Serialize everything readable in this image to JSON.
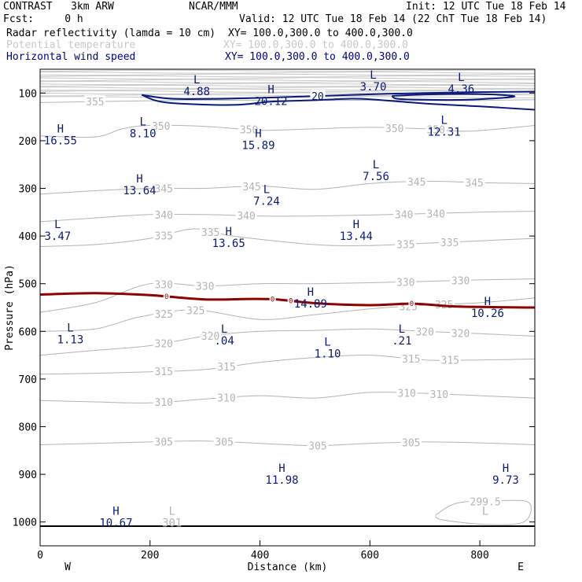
{
  "header": {
    "model": "CONTRAST   3km ARW",
    "center": "NCAR/MMM",
    "init": "Init: 12 UTC Tue 18 Feb 14",
    "fcst": "Fcst:     0 h",
    "valid": "Valid: 12 UTC Tue 18 Feb 14 (22 ChT Tue 18 Feb 14)",
    "fields": [
      {
        "label": "Radar reflectivity (lamda = 10 cm)",
        "xy": "XY= 100.0,300.0 to 400.0,300.0",
        "color": "#000000"
      },
      {
        "label": "Potential temperature",
        "xy": "XY= 100.0,300.0 to 400.0,300.0",
        "color": "#c8c8c8"
      },
      {
        "label": "Horizontal wind speed",
        "xy": "XY= 100.0,300.0 to 400.0,300.0",
        "color": "#000080"
      }
    ]
  },
  "colors": {
    "theta": "#b4b4b4",
    "wind": "#0a1a78",
    "freezing": "#8b0000",
    "frame": "#000000"
  },
  "chart_data": {
    "type": "contour-cross-section",
    "xlabel": "Distance (km)",
    "ylabel": "Pressure (hPa)",
    "xlim": [
      0,
      900
    ],
    "ylim": [
      1050,
      50
    ],
    "x_ticks": [
      0,
      200,
      400,
      600,
      800
    ],
    "y_ticks": [
      100,
      200,
      300,
      400,
      500,
      600,
      700,
      800,
      900,
      1000
    ],
    "endpoints": {
      "left": "W",
      "right": "E"
    },
    "theta_contours": [
      {
        "level": "355",
        "x": [
          0,
          150,
          300,
          450,
          600,
          750,
          900
        ],
        "p": [
          120,
          117,
          115,
          116,
          115,
          116,
          114
        ],
        "labels": [
          {
            "x": 100,
            "text": "355"
          }
        ]
      },
      {
        "level": "350",
        "x": [
          0,
          100,
          150,
          200,
          300,
          400,
          500,
          600,
          700,
          780,
          900
        ],
        "p": [
          190,
          192,
          175,
          168,
          170,
          178,
          175,
          172,
          175,
          180,
          168
        ],
        "labels": [
          {
            "x": 220,
            "text": "350"
          },
          {
            "x": 380,
            "text": "350"
          },
          {
            "x": 645,
            "text": "350"
          },
          {
            "x": 720,
            "text": "350"
          }
        ]
      },
      {
        "level": "345",
        "x": [
          0,
          100,
          200,
          300,
          400,
          500,
          600,
          700,
          800,
          900
        ],
        "p": [
          312,
          305,
          300,
          300,
          295,
          302,
          290,
          285,
          288,
          290
        ],
        "labels": [
          {
            "x": 225,
            "text": "345"
          },
          {
            "x": 385,
            "text": "345"
          },
          {
            "x": 685,
            "text": "345"
          },
          {
            "x": 790,
            "text": "345"
          }
        ]
      },
      {
        "level": "340",
        "x": [
          0,
          100,
          200,
          300,
          400,
          500,
          600,
          700,
          800,
          900
        ],
        "p": [
          370,
          362,
          355,
          355,
          358,
          358,
          356,
          353,
          350,
          348
        ],
        "labels": [
          {
            "x": 225,
            "text": "340"
          },
          {
            "x": 375,
            "text": "340"
          },
          {
            "x": 662,
            "text": "340"
          },
          {
            "x": 720,
            "text": "340"
          }
        ]
      },
      {
        "level": "335",
        "x": [
          0,
          100,
          200,
          280,
          350,
          500,
          600,
          700,
          800,
          900
        ],
        "p": [
          422,
          418,
          405,
          385,
          400,
          418,
          420,
          415,
          410,
          405
        ],
        "labels": [
          {
            "x": 225,
            "text": "335"
          },
          {
            "x": 310,
            "text": "335"
          },
          {
            "x": 665,
            "text": "335"
          },
          {
            "x": 745,
            "text": "335"
          }
        ]
      },
      {
        "level": "330",
        "x": [
          0,
          100,
          200,
          300,
          400,
          500,
          600,
          700,
          800,
          900
        ],
        "p": [
          560,
          540,
          500,
          505,
          500,
          500,
          498,
          495,
          492,
          490
        ],
        "labels": [
          {
            "x": 225,
            "text": "330"
          },
          {
            "x": 300,
            "text": "330"
          },
          {
            "x": 665,
            "text": "330"
          },
          {
            "x": 765,
            "text": "330"
          }
        ]
      },
      {
        "level": "325",
        "x": [
          0,
          100,
          180,
          280,
          400,
          500,
          600,
          700,
          800,
          900
        ],
        "p": [
          600,
          595,
          570,
          555,
          575,
          565,
          553,
          545,
          540,
          530
        ],
        "labels": [
          {
            "x": 225,
            "text": "325"
          },
          {
            "x": 283,
            "text": "325"
          },
          {
            "x": 670,
            "text": "325"
          },
          {
            "x": 735,
            "text": "325"
          }
        ]
      },
      {
        "level": "320",
        "x": [
          0,
          100,
          200,
          300,
          400,
          500,
          600,
          700,
          800,
          900
        ],
        "p": [
          650,
          640,
          630,
          610,
          600,
          598,
          595,
          600,
          605,
          610
        ],
        "labels": [
          {
            "x": 225,
            "text": "320"
          },
          {
            "x": 310,
            "text": "320"
          },
          {
            "x": 700,
            "text": "320"
          },
          {
            "x": 765,
            "text": "320"
          }
        ]
      },
      {
        "level": "315",
        "x": [
          0,
          100,
          200,
          300,
          400,
          500,
          600,
          700,
          800,
          900
        ],
        "p": [
          690,
          688,
          685,
          680,
          665,
          655,
          650,
          660,
          660,
          658
        ],
        "labels": [
          {
            "x": 225,
            "text": "315"
          },
          {
            "x": 339,
            "text": "315"
          },
          {
            "x": 675,
            "text": "315"
          },
          {
            "x": 746,
            "text": "315"
          }
        ]
      },
      {
        "level": "310",
        "x": [
          0,
          100,
          200,
          300,
          400,
          500,
          600,
          700,
          800,
          900
        ],
        "p": [
          745,
          748,
          750,
          742,
          735,
          740,
          728,
          730,
          735,
          740
        ],
        "labels": [
          {
            "x": 225,
            "text": "310"
          },
          {
            "x": 339,
            "text": "310"
          },
          {
            "x": 667,
            "text": "310"
          },
          {
            "x": 726,
            "text": "310"
          }
        ]
      },
      {
        "level": "305",
        "x": [
          0,
          100,
          200,
          300,
          400,
          500,
          600,
          700,
          800,
          900
        ],
        "p": [
          838,
          835,
          832,
          830,
          835,
          840,
          835,
          832,
          834,
          838
        ],
        "labels": [
          {
            "x": 225,
            "text": "305"
          },
          {
            "x": 335,
            "text": "305"
          },
          {
            "x": 505,
            "text": "305"
          },
          {
            "x": 675,
            "text": "305"
          }
        ]
      },
      {
        "level": "299.5",
        "x": [
          720,
          760,
          840,
          890,
          880,
          810,
          730,
          720
        ],
        "p": [
          985,
          960,
          955,
          960,
          1000,
          1005,
          995,
          985
        ],
        "labels": [
          {
            "x": 810,
            "text": "299.5"
          }
        ]
      }
    ],
    "wind_contours": [
      {
        "level": "20",
        "points": [
          [
            185,
            104
          ],
          [
            240,
            112
          ],
          [
            330,
            112
          ],
          [
            400,
            110
          ],
          [
            460,
            108
          ],
          [
            540,
            105
          ],
          [
            620,
            102
          ],
          [
            700,
            100
          ],
          [
            800,
            98
          ],
          [
            900,
            97
          ]
        ],
        "labels": [
          {
            "x": 505,
            "text": "20"
          }
        ]
      },
      {
        "level": "20",
        "points": [
          [
            185,
            104
          ],
          [
            230,
            120
          ],
          [
            350,
            125
          ],
          [
            420,
            118
          ],
          [
            500,
            115
          ],
          [
            560,
            112
          ],
          [
            600,
            113
          ],
          [
            700,
            122
          ],
          [
            800,
            128
          ],
          [
            900,
            135
          ]
        ],
        "labels": []
      },
      {
        "level": "25",
        "points": [
          [
            640,
            106
          ],
          [
            700,
            103
          ],
          [
            780,
            102
          ],
          [
            840,
            104
          ],
          [
            860,
            108
          ],
          [
            780,
            114
          ],
          [
            700,
            114
          ],
          [
            650,
            112
          ],
          [
            640,
            106
          ]
        ],
        "labels": []
      }
    ],
    "freezing_level": {
      "points": [
        [
          0,
          523
        ],
        [
          100,
          520
        ],
        [
          200,
          524
        ],
        [
          300,
          533
        ],
        [
          380,
          532
        ],
        [
          430,
          533
        ],
        [
          500,
          541
        ],
        [
          600,
          545
        ],
        [
          680,
          542
        ],
        [
          760,
          548
        ],
        [
          900,
          550
        ]
      ],
      "markers": [
        {
          "x": 230,
          "text": "0"
        },
        {
          "x": 423,
          "text": "0"
        },
        {
          "x": 456,
          "text": "0"
        },
        {
          "x": 676,
          "text": "0"
        }
      ]
    },
    "theta_extrema": [
      {
        "type": "L",
        "value": "301",
        "x": 240,
        "p": 985
      }
    ],
    "wind_extrema": [
      {
        "type": "L",
        "value": "4.88",
        "x": 285,
        "p": 80
      },
      {
        "type": "L",
        "value": "3.70",
        "x": 606,
        "p": 70
      },
      {
        "type": "L",
        "value": "4.36",
        "x": 766,
        "p": 75
      },
      {
        "type": "H",
        "value": "20.12",
        "x": 420,
        "p": 100
      },
      {
        "type": "L",
        "value": "12.31",
        "x": 735,
        "p": 165
      },
      {
        "type": "H",
        "value": "16.55",
        "x": 37,
        "p": 183
      },
      {
        "type": "L",
        "value": "8.10",
        "x": 187,
        "p": 168
      },
      {
        "type": "H",
        "value": "15.89",
        "x": 397,
        "p": 193
      },
      {
        "type": "L",
        "value": "7.56",
        "x": 611,
        "p": 258
      },
      {
        "type": "H",
        "value": "13.64",
        "x": 181,
        "p": 288
      },
      {
        "type": "L",
        "value": "7.24",
        "x": 412,
        "p": 310
      },
      {
        "type": "L",
        "value": "3.47",
        "x": 32,
        "p": 383
      },
      {
        "type": "H",
        "value": "13.44",
        "x": 575,
        "p": 383
      },
      {
        "type": "H",
        "value": "13.65",
        "x": 343,
        "p": 398
      },
      {
        "type": "H",
        "value": "14.89",
        "x": 492,
        "p": 525
      },
      {
        "type": "H",
        "value": "10.26",
        "x": 814,
        "p": 545
      },
      {
        "type": "L",
        "value": "1.13",
        "x": 55,
        "p": 600
      },
      {
        "type": "L",
        "value": ".04",
        "x": 335,
        "p": 603
      },
      {
        "type": "L",
        "value": ".21",
        "x": 658,
        "p": 603
      },
      {
        "type": "L",
        "value": "1.10",
        "x": 523,
        "p": 630
      },
      {
        "type": "H",
        "value": "11.98",
        "x": 440,
        "p": 895
      },
      {
        "type": "H",
        "value": "9.73",
        "x": 847,
        "p": 895
      },
      {
        "type": "H",
        "value": "10.67",
        "x": 138,
        "p": 985
      }
    ]
  }
}
